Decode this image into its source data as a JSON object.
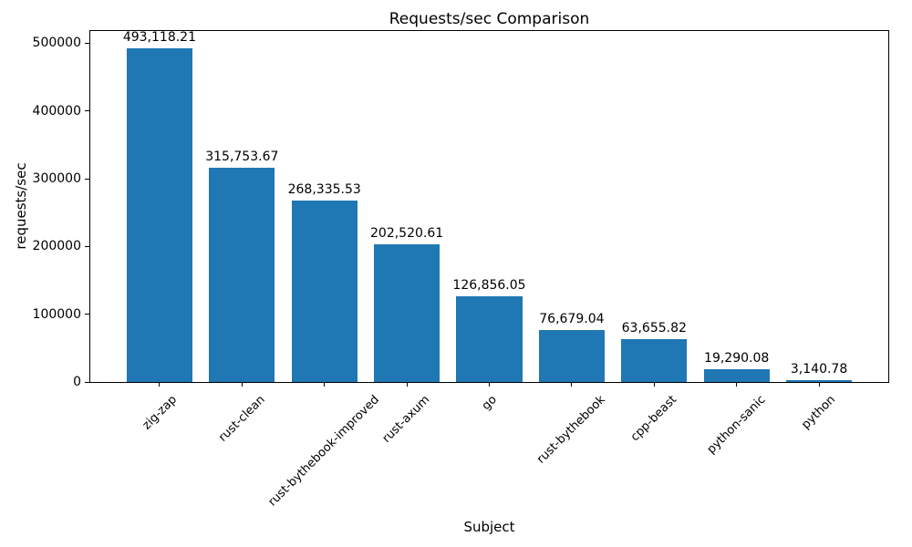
{
  "chart_data": {
    "type": "bar",
    "title": "Requests/sec Comparison",
    "xlabel": "Subject",
    "ylabel": "requests/sec",
    "categories": [
      "zig-zap",
      "rust-clean",
      "rust-bythebook-improved",
      "rust-axum",
      "go",
      "rust-bythebook",
      "cpp-beast",
      "python-sanic",
      "python"
    ],
    "values": [
      493118.21,
      315753.67,
      268335.53,
      202520.61,
      126856.05,
      76679.04,
      63655.82,
      19290.08,
      3140.78
    ],
    "value_labels": [
      "493,118.21",
      "315,753.67",
      "268,335.53",
      "202,520.61",
      "126,856.05",
      "76,679.04",
      "63,655.82",
      "19,290.08",
      "3,140.78"
    ],
    "yticks": [
      0,
      100000,
      200000,
      300000,
      400000,
      500000
    ],
    "ytick_labels": [
      "0",
      "100000",
      "200000",
      "300000",
      "400000",
      "500000"
    ],
    "ylim": [
      0,
      518000
    ],
    "xtick_rotation": 45,
    "grid": false,
    "legend": "none",
    "bar_color": "#1f77b4",
    "background_color": "#ffffff",
    "text_color": "#000000"
  }
}
